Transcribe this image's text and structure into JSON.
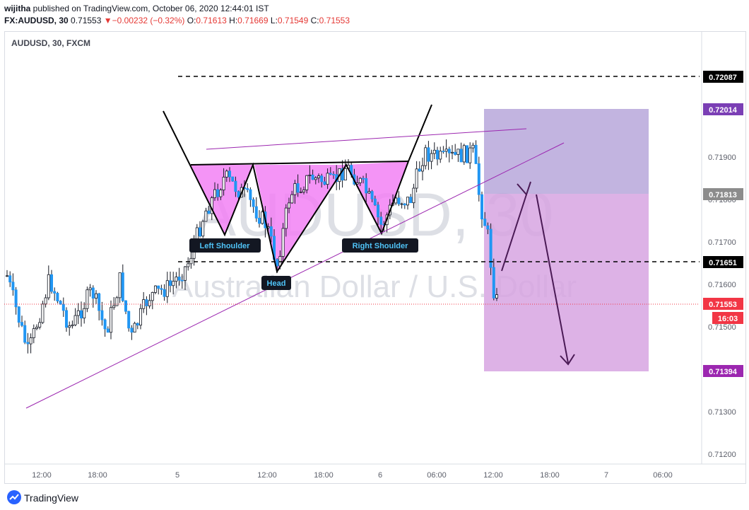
{
  "header": {
    "publisher": "wijitha",
    "published_text": " published on TradingView.com, October 06, 2020 12:44:01 IST",
    "symbol": "FX:AUDUSD, 30",
    "last": "0.71553",
    "change": "−0.00232 (−0.32%)",
    "o_label": "O:",
    "o": "0.71613",
    "h_label": "H:",
    "h": "0.71669",
    "l_label": "L:",
    "l": "0.71549",
    "c_label": "C:",
    "c": "0.71553"
  },
  "chart": {
    "title": "AUDUSD, 30, FXCM",
    "watermark_symbol": "AUDUSD, 30",
    "watermark_name": "Australian Dollar / U.S. Dollar",
    "annotations": {
      "left_shoulder": "Left Shoulder",
      "head": "Head",
      "right_shoulder": "Right Shoulder"
    },
    "price_axis": [
      "0.71900",
      "0.71800",
      "0.71700",
      "0.71600",
      "0.71500",
      "0.71300",
      "0.71200"
    ],
    "price_labels": [
      {
        "text": "0.72087",
        "color": "#000000"
      },
      {
        "text": "0.72014",
        "color": "#7b3fb5"
      },
      {
        "text": "0.71813",
        "color": "#8c8c8c"
      },
      {
        "text": "0.71651",
        "color": "#000000"
      },
      {
        "text": "0.71553",
        "color": "#f23645"
      },
      {
        "text": "16:03",
        "color": "#f23645"
      },
      {
        "text": "0.71394",
        "color": "#9c27b0"
      }
    ],
    "time_axis": [
      "12:00",
      "18:00",
      "5",
      "12:00",
      "18:00",
      "6",
      "06:00",
      "12:00",
      "18:00",
      "7",
      "06:00"
    ],
    "colors": {
      "up": "#ffffff",
      "down": "#2196f3",
      "pattern_fill": "#f281f5",
      "trendline": "#9c27b0",
      "stop_zone": "#b7a7db",
      "target_zone": "#d7a4e2"
    }
  },
  "footer": {
    "brand": "TradingView"
  }
}
